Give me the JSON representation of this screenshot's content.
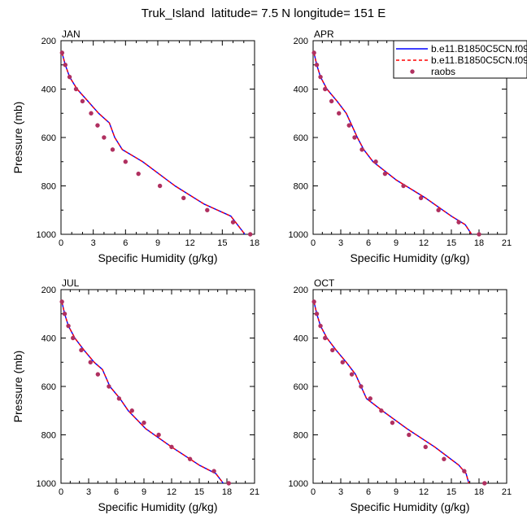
{
  "figure": {
    "title": "Truk_Island  latitude= 7.5 N longitude= 151 E"
  },
  "legend": {
    "placement": "top-right of APR panel",
    "entries": [
      {
        "label": "b.e11.B1850C5CN.f09",
        "style": "solid",
        "color": "#0000ff"
      },
      {
        "label": "b.e11.B1850C5CN.f09",
        "style": "dashed",
        "color": "#ff0000"
      },
      {
        "label": "raobs",
        "style": "marker",
        "color": "#b03060"
      }
    ]
  },
  "colors": {
    "model_solid": "#0000ff",
    "model_dashed": "#ff0000",
    "obs": "#b03060"
  },
  "chart_data": [
    {
      "type": "line",
      "panel": "JAN",
      "title": "JAN",
      "xlabel": "Specific Humidity (g/kg)",
      "ylabel": "Pressure (mb)",
      "xlim": [
        0,
        18
      ],
      "ylim": [
        200,
        1000
      ],
      "y_reversed": true,
      "xticks": [
        0,
        3,
        6,
        9,
        12,
        15,
        18
      ],
      "yticks": [
        200,
        400,
        600,
        800,
        1000
      ],
      "series": [
        {
          "name": "b.e11.B1850C5CN.f09",
          "style": "solid",
          "x": [
            0.1,
            0.4,
            0.8,
            1.5,
            2.5,
            3.5,
            4.5,
            5.0,
            5.7,
            7.6,
            10.6,
            13.3,
            15.8,
            17.1
          ],
          "y": [
            250,
            300,
            350,
            400,
            450,
            500,
            540,
            600,
            650,
            700,
            800,
            875,
            925,
            1000
          ]
        },
        {
          "name": "b.e11.B1850C5CN.f09",
          "style": "dashed",
          "x": [
            0.1,
            0.4,
            0.8,
            1.5,
            2.5,
            3.5,
            4.5,
            5.0,
            5.7,
            7.6,
            10.6,
            13.3,
            15.8,
            17.1
          ],
          "y": [
            250,
            300,
            350,
            400,
            450,
            500,
            540,
            600,
            650,
            700,
            800,
            875,
            925,
            1000
          ]
        },
        {
          "name": "raobs",
          "style": "marker",
          "x": [
            0.1,
            0.4,
            0.8,
            1.4,
            2.0,
            2.8,
            3.4,
            4.0,
            4.8,
            6.0,
            7.2,
            9.2,
            11.4,
            13.6,
            16.0,
            17.6
          ],
          "y": [
            250,
            300,
            350,
            400,
            450,
            500,
            550,
            600,
            650,
            700,
            750,
            800,
            850,
            900,
            950,
            1000
          ]
        }
      ]
    },
    {
      "type": "line",
      "panel": "APR",
      "title": "APR",
      "xlabel": "Specific Humidity (g/kg)",
      "ylabel": "",
      "xlim": [
        0,
        21
      ],
      "ylim": [
        200,
        1000
      ],
      "y_reversed": true,
      "xticks": [
        0,
        3,
        6,
        9,
        12,
        15,
        18,
        21
      ],
      "yticks": [
        200,
        400,
        600,
        800,
        1000
      ],
      "series": [
        {
          "name": "b.e11.B1850C5CN.f09",
          "style": "solid",
          "x": [
            0.1,
            0.4,
            0.8,
            1.5,
            2.6,
            3.6,
            4.2,
            4.8,
            5.5,
            6.5,
            9.0,
            12.2,
            15.0,
            16.5,
            17.2
          ],
          "y": [
            250,
            300,
            350,
            400,
            450,
            500,
            550,
            600,
            650,
            700,
            775,
            850,
            925,
            960,
            1000
          ]
        },
        {
          "name": "b.e11.B1850C5CN.f09",
          "style": "dashed",
          "x": [
            0.1,
            0.4,
            0.8,
            1.5,
            2.6,
            3.6,
            4.2,
            4.8,
            5.5,
            6.5,
            9.0,
            12.2,
            15.0,
            16.5,
            17.2
          ],
          "y": [
            250,
            300,
            350,
            400,
            450,
            500,
            550,
            600,
            650,
            700,
            775,
            850,
            925,
            960,
            1000
          ]
        },
        {
          "name": "raobs",
          "style": "marker",
          "x": [
            0.1,
            0.4,
            0.8,
            1.3,
            2.0,
            2.8,
            3.9,
            4.5,
            5.3,
            6.8,
            7.8,
            9.8,
            11.7,
            13.6,
            15.8,
            18.0
          ],
          "y": [
            250,
            300,
            350,
            400,
            450,
            500,
            550,
            600,
            650,
            700,
            750,
            800,
            850,
            900,
            950,
            1000
          ]
        }
      ]
    },
    {
      "type": "line",
      "panel": "JUL",
      "title": "JUL",
      "xlabel": "Specific Humidity (g/kg)",
      "ylabel": "Pressure (mb)",
      "xlim": [
        0,
        21
      ],
      "ylim": [
        200,
        1000
      ],
      "y_reversed": true,
      "xticks": [
        0,
        3,
        6,
        9,
        12,
        15,
        18,
        21
      ],
      "yticks": [
        200,
        400,
        600,
        800,
        1000
      ],
      "series": [
        {
          "name": "b.e11.B1850C5CN.f09",
          "style": "solid",
          "x": [
            0.1,
            0.4,
            0.8,
            1.5,
            2.5,
            3.6,
            4.5,
            5.3,
            6.4,
            7.3,
            9.2,
            12.0,
            15.0,
            16.8,
            17.6
          ],
          "y": [
            250,
            300,
            350,
            400,
            450,
            500,
            530,
            600,
            650,
            700,
            775,
            850,
            925,
            960,
            1000
          ]
        },
        {
          "name": "b.e11.B1850C5CN.f09",
          "style": "dashed",
          "x": [
            0.1,
            0.4,
            0.8,
            1.5,
            2.5,
            3.6,
            4.5,
            5.3,
            6.4,
            7.3,
            9.2,
            12.0,
            15.0,
            16.8,
            17.6
          ],
          "y": [
            250,
            300,
            350,
            400,
            450,
            500,
            530,
            600,
            650,
            700,
            775,
            850,
            925,
            960,
            1000
          ]
        },
        {
          "name": "raobs",
          "style": "marker",
          "x": [
            0.1,
            0.4,
            0.8,
            1.3,
            2.2,
            3.2,
            4.0,
            5.2,
            6.3,
            7.7,
            9.0,
            10.6,
            12.0,
            14.0,
            16.6,
            18.2
          ],
          "y": [
            250,
            300,
            350,
            400,
            450,
            500,
            550,
            600,
            650,
            700,
            750,
            800,
            850,
            900,
            950,
            1000
          ]
        }
      ]
    },
    {
      "type": "line",
      "panel": "OCT",
      "title": "OCT",
      "xlabel": "Specific Humidity (g/kg)",
      "ylabel": "",
      "xlim": [
        0,
        21
      ],
      "ylim": [
        200,
        1000
      ],
      "y_reversed": true,
      "xticks": [
        0,
        3,
        6,
        9,
        12,
        15,
        18,
        21
      ],
      "yticks": [
        200,
        400,
        600,
        800,
        1000
      ],
      "series": [
        {
          "name": "b.e11.B1850C5CN.f09",
          "style": "solid",
          "x": [
            0.1,
            0.4,
            0.8,
            1.5,
            2.5,
            3.6,
            4.6,
            5.2,
            5.8,
            7.5,
            10.2,
            13.2,
            15.8,
            16.6,
            16.9
          ],
          "y": [
            250,
            300,
            350,
            400,
            450,
            500,
            550,
            600,
            650,
            700,
            775,
            850,
            925,
            960,
            1000
          ]
        },
        {
          "name": "b.e11.B1850C5CN.f09",
          "style": "dashed",
          "x": [
            0.1,
            0.4,
            0.8,
            1.5,
            2.5,
            3.6,
            4.6,
            5.2,
            5.8,
            7.5,
            10.2,
            13.2,
            15.8,
            16.6,
            16.9
          ],
          "y": [
            250,
            300,
            350,
            400,
            450,
            500,
            550,
            600,
            650,
            700,
            775,
            850,
            925,
            960,
            1000
          ]
        },
        {
          "name": "raobs",
          "style": "marker",
          "x": [
            0.1,
            0.4,
            0.8,
            1.3,
            2.1,
            3.2,
            4.2,
            5.2,
            6.2,
            7.4,
            8.6,
            10.4,
            12.2,
            14.2,
            16.4,
            18.6
          ],
          "y": [
            250,
            300,
            350,
            400,
            450,
            500,
            550,
            600,
            650,
            700,
            750,
            800,
            850,
            900,
            950,
            1000
          ]
        }
      ]
    }
  ]
}
